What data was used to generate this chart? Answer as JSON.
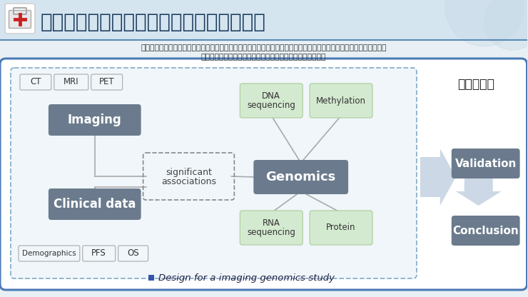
{
  "title": "（二）影像大数据价值利用：基因组学研究",
  "subtitle1": "传统形态学影像诊断模式已不能满足精准诊疗条件，将无创深度学习放射组学技术与基因组学技术整合成放射基因组学，",
  "subtitle2": "形成非传统的数据分析技术模式，实现对疾病的无创精准诊疗",
  "dark_box_color": "#6b7b8d",
  "light_green_color": "#d4ead0",
  "light_green_border": "#b0d0a0",
  "right_section_text": "多学科融合",
  "caption": "Design for a imaging genomics study",
  "bg_top": "#d5e5f0",
  "bg_main": "#e8f0f5",
  "outer_box_color": "#4a7ab5",
  "inner_box_color": "#8ab0cc",
  "line_color": "#aaaaaa",
  "arrow_color": "#c8d8e8",
  "title_color": "#1a3a5c",
  "subtitle_color": "#333333",
  "white": "#ffffff",
  "caption_color": "#333366"
}
